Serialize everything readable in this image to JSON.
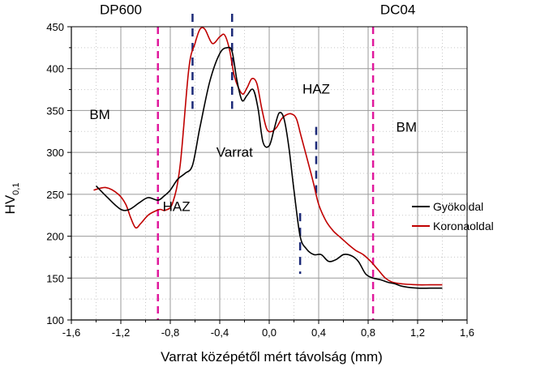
{
  "chart_data": {
    "type": "line",
    "xlabel": "Varrat középétől mért távolság (mm)",
    "ylabel_main": "HV",
    "ylabel_sub": "0,1",
    "xlim": [
      -1.6,
      1.6
    ],
    "ylim": [
      100,
      450
    ],
    "xticks": [
      -1.6,
      -1.2,
      -0.8,
      -0.4,
      0.0,
      0.4,
      0.8,
      1.2,
      1.6
    ],
    "xtick_labels": [
      "-1,6",
      "-1,2",
      "-0,8",
      "-0,4",
      "0,0",
      "0,4",
      "0,8",
      "1,2",
      "1,6"
    ],
    "yticks": [
      100,
      150,
      200,
      250,
      300,
      350,
      400,
      450
    ],
    "ytick_labels": [
      "100",
      "150",
      "200",
      "250",
      "300",
      "350",
      "400",
      "450"
    ],
    "grid": true,
    "legend_position": "right-center",
    "series": [
      {
        "name": "Gyökoldal",
        "color": "#000000",
        "x": [
          -1.4,
          -1.3,
          -1.2,
          -1.13,
          -1.05,
          -0.98,
          -0.9,
          -0.85,
          -0.8,
          -0.74,
          -0.68,
          -0.62,
          -0.56,
          -0.48,
          -0.4,
          -0.34,
          -0.3,
          -0.26,
          -0.22,
          -0.18,
          -0.13,
          -0.09,
          -0.05,
          0.0,
          0.04,
          0.08,
          0.12,
          0.16,
          0.2,
          0.25,
          0.3,
          0.36,
          0.42,
          0.48,
          0.54,
          0.6,
          0.66,
          0.72,
          0.78,
          0.84,
          0.9,
          0.96,
          1.02,
          1.08,
          1.2,
          1.3,
          1.4
        ],
        "y": [
          260,
          245,
          232,
          232,
          240,
          246,
          243,
          248,
          255,
          268,
          275,
          285,
          330,
          385,
          418,
          425,
          420,
          385,
          362,
          368,
          375,
          352,
          312,
          308,
          328,
          347,
          340,
          305,
          255,
          200,
          185,
          178,
          178,
          170,
          172,
          178,
          177,
          170,
          155,
          150,
          148,
          145,
          143,
          140,
          138,
          138,
          138
        ]
      },
      {
        "name": "Koronaoldal",
        "color": "#c00000",
        "x": [
          -1.42,
          -1.32,
          -1.22,
          -1.16,
          -1.12,
          -1.08,
          -1.04,
          -0.98,
          -0.92,
          -0.88,
          -0.84,
          -0.78,
          -0.72,
          -0.65,
          -0.6,
          -0.56,
          -0.52,
          -0.46,
          -0.4,
          -0.36,
          -0.32,
          -0.28,
          -0.22,
          -0.18,
          -0.14,
          -0.1,
          -0.06,
          -0.02,
          0.02,
          0.06,
          0.1,
          0.14,
          0.18,
          0.22,
          0.26,
          0.32,
          0.36,
          0.4,
          0.46,
          0.52,
          0.58,
          0.64,
          0.7,
          0.76,
          0.82,
          0.88,
          0.94,
          1.0,
          1.08,
          1.2,
          1.3,
          1.4
        ],
        "y": [
          255,
          258,
          250,
          238,
          222,
          210,
          215,
          225,
          230,
          232,
          231,
          240,
          285,
          400,
          430,
          447,
          447,
          430,
          438,
          440,
          422,
          390,
          370,
          377,
          388,
          382,
          352,
          328,
          325,
          330,
          340,
          345,
          346,
          340,
          318,
          285,
          262,
          238,
          218,
          206,
          198,
          190,
          183,
          178,
          170,
          160,
          150,
          145,
          143,
          142,
          142,
          142
        ]
      }
    ],
    "vlines_magenta": [
      -0.9,
      0.84
    ],
    "vlines_navy": [
      {
        "x": -0.62,
        "y1": 352,
        "y2": 450
      },
      {
        "x": -0.3,
        "y1": 352,
        "y2": 450
      },
      {
        "x": 0.25,
        "y1": 155,
        "y2": 212
      },
      {
        "x": 0.38,
        "y1": 250,
        "y2": 315
      }
    ],
    "annotations": [
      {
        "text": "DP600",
        "x": -1.2,
        "y": 465
      },
      {
        "text": "DC04",
        "x": 1.04,
        "y": 465
      },
      {
        "text": "BM",
        "x": -1.37,
        "y": 340
      },
      {
        "text": "BM",
        "x": 1.11,
        "y": 325
      },
      {
        "text": "HAZ",
        "x": -0.75,
        "y": 230
      },
      {
        "text": "HAZ",
        "x": 0.38,
        "y": 370
      },
      {
        "text": "Varrat",
        "x": -0.28,
        "y": 295
      }
    ],
    "colors": {
      "gyok": "#000000",
      "korona": "#c00000",
      "magenta": "#e0189c",
      "navy": "#1c2a78",
      "grid": "#9a9a9a"
    }
  }
}
